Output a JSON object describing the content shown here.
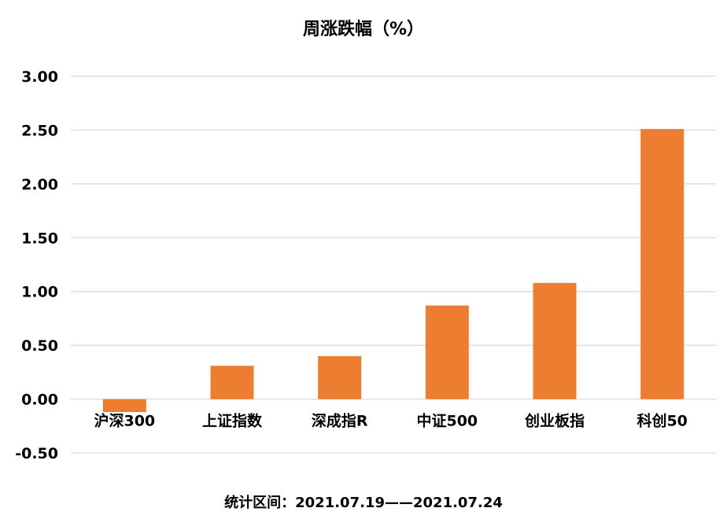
{
  "chart_data": {
    "type": "bar",
    "title": "周涨跌幅（%）",
    "categories": [
      "沪深300",
      "上证指数",
      "深成指R",
      "中证500",
      "创业板指",
      "科创50"
    ],
    "values": [
      -0.12,
      0.31,
      0.4,
      0.87,
      1.08,
      2.51
    ],
    "ylim": [
      -0.5,
      3.0
    ],
    "yticks": [
      "3.00",
      "2.50",
      "2.00",
      "1.50",
      "1.00",
      "0.50",
      "0.00",
      "-0.50"
    ],
    "ytick_values": [
      3.0,
      2.5,
      2.0,
      1.5,
      1.0,
      0.5,
      0.0,
      -0.5
    ],
    "grid": true,
    "legend": "none",
    "bar_color": "#ED7D31",
    "grid_color": "#D9D9D9"
  },
  "footer": {
    "period": "统计区间：2021.07.19——2021.07.24"
  }
}
